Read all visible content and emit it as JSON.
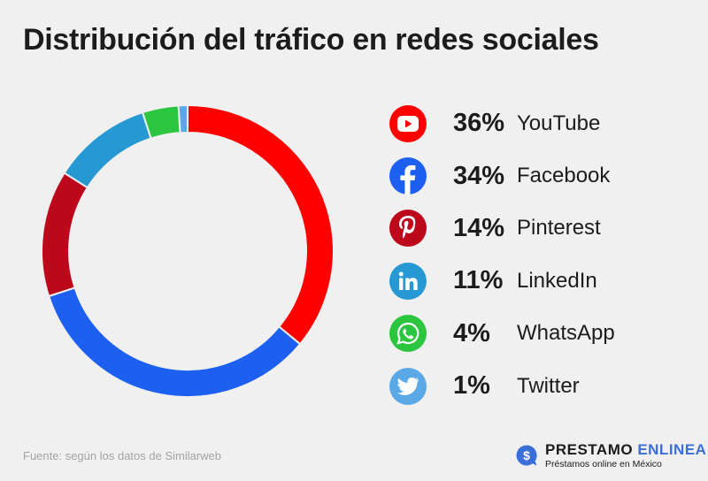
{
  "title": "Distribución del tráfico en redes sociales",
  "source": "Fuente: según los datos de Similarweb",
  "brand": {
    "name_part1": "PRESTAMO",
    "name_part2": "ENLINEA",
    "tagline": "Préstamos online en México"
  },
  "colors": {
    "youtube": "#fe0000",
    "facebook": "#1d5ff0",
    "pinterest": "#bd081c",
    "linkedin": "#2698d2",
    "whatsapp": "#2cc540",
    "twitter": "#5aa8e6",
    "background": "#f0f0f0"
  },
  "legend": [
    {
      "pct": "36%",
      "label": "YouTube",
      "icon": "youtube-icon"
    },
    {
      "pct": "34%",
      "label": "Facebook",
      "icon": "facebook-icon"
    },
    {
      "pct": "14%",
      "label": "Pinterest",
      "icon": "pinterest-icon"
    },
    {
      "pct": "11%",
      "label": "LinkedIn",
      "icon": "linkedin-icon"
    },
    {
      "pct": "4%",
      "label": "WhatsApp",
      "icon": "whatsapp-icon"
    },
    {
      "pct": "1%",
      "label": "Twitter",
      "icon": "twitter-icon"
    }
  ],
  "chart_data": {
    "type": "pie",
    "title": "Distribución del tráfico en redes sociales",
    "categories": [
      "YouTube",
      "Facebook",
      "Pinterest",
      "LinkedIn",
      "WhatsApp",
      "Twitter"
    ],
    "values": [
      36,
      34,
      14,
      11,
      4,
      1
    ],
    "unit": "%",
    "donut": true,
    "legend_position": "right"
  }
}
